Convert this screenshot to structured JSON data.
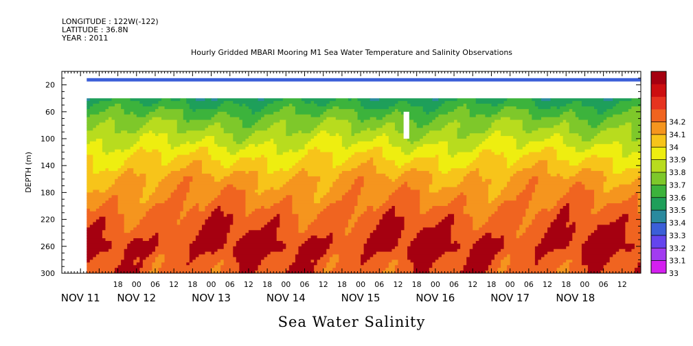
{
  "header": {
    "longitude": "LONGITUDE : 122W(-122)",
    "latitude": "LATITUDE : 36.8N",
    "year": "YEAR : 2011",
    "title": "Hourly Gridded MBARI Mooring M1 Sea Water Temperature and Salinity Observations"
  },
  "footer": {
    "variable": "Sea Water Salinity"
  },
  "chart_data": {
    "type": "heatmap",
    "title": "Hourly Gridded MBARI Mooring M1 Sea Water Temperature and Salinity Observations",
    "subtitle": "Sea Water Salinity",
    "ylabel": "DEPTH (m)",
    "xlabel": "",
    "ylim": [
      300,
      0
    ],
    "xlim_hours": [
      0,
      186
    ],
    "y_ticks": [
      20,
      60,
      100,
      140,
      180,
      220,
      260,
      300
    ],
    "x_hour_ticks": [
      {
        "hour": 18,
        "label": "18"
      },
      {
        "hour": 24,
        "label": "00"
      },
      {
        "hour": 30,
        "label": "06"
      },
      {
        "hour": 36,
        "label": "12"
      },
      {
        "hour": 42,
        "label": "18"
      },
      {
        "hour": 48,
        "label": "00"
      },
      {
        "hour": 54,
        "label": "06"
      },
      {
        "hour": 60,
        "label": "12"
      },
      {
        "hour": 66,
        "label": "18"
      },
      {
        "hour": 72,
        "label": "00"
      },
      {
        "hour": 78,
        "label": "06"
      },
      {
        "hour": 84,
        "label": "12"
      },
      {
        "hour": 90,
        "label": "18"
      },
      {
        "hour": 96,
        "label": "00"
      },
      {
        "hour": 102,
        "label": "06"
      },
      {
        "hour": 108,
        "label": "12"
      },
      {
        "hour": 114,
        "label": "18"
      },
      {
        "hour": 120,
        "label": "00"
      },
      {
        "hour": 126,
        "label": "06"
      },
      {
        "hour": 132,
        "label": "12"
      },
      {
        "hour": 138,
        "label": "18"
      },
      {
        "hour": 144,
        "label": "00"
      },
      {
        "hour": 150,
        "label": "06"
      },
      {
        "hour": 156,
        "label": "12"
      },
      {
        "hour": 162,
        "label": "18"
      },
      {
        "hour": 168,
        "label": "00"
      },
      {
        "hour": 174,
        "label": "06"
      },
      {
        "hour": 180,
        "label": "12"
      }
    ],
    "day_labels": [
      {
        "hour": 6,
        "label": "NOV 11"
      },
      {
        "hour": 24,
        "label": "NOV 12"
      },
      {
        "hour": 48,
        "label": "NOV 13"
      },
      {
        "hour": 72,
        "label": "NOV 14"
      },
      {
        "hour": 96,
        "label": "NOV 15"
      },
      {
        "hour": 120,
        "label": "NOV 16"
      },
      {
        "hour": 144,
        "label": "NOV 17"
      },
      {
        "hour": 165,
        "label": "NOV 18"
      }
    ],
    "data_start_hour": 8,
    "data_end_hour": 186,
    "surface_depths": [
      10,
      15
    ],
    "surface_value": 33.25,
    "gap_depths": [
      15,
      40
    ],
    "gap_columns": [
      {
        "hour_start": 109.8,
        "hour_end": 111.6,
        "depth_start": 60,
        "depth_end": 100
      }
    ],
    "depth_levels": [
      40,
      60,
      80,
      100,
      120,
      140,
      160,
      180,
      200,
      220,
      240,
      260,
      280,
      300
    ],
    "profile_values": [
      33.45,
      33.58,
      33.68,
      33.76,
      33.86,
      33.94,
      34.02,
      34.06,
      34.11,
      34.15,
      34.18,
      34.22,
      34.17,
      34.16
    ],
    "colorbar": {
      "levels": [
        33,
        33.1,
        33.2,
        33.3,
        33.4,
        33.5,
        33.6,
        33.7,
        33.8,
        33.9,
        34,
        34.1,
        34.2
      ],
      "labels": [
        "33",
        "33.1",
        "33.2",
        "33.3",
        "33.4",
        "33.5",
        "33.6",
        "33.7",
        "33.8",
        "33.9",
        "34",
        "34.1",
        "34.2"
      ],
      "colors": [
        "#d41ff0",
        "#a23cf0",
        "#6445ee",
        "#3b5fd8",
        "#2a8a9e",
        "#1e9f5a",
        "#3cb33c",
        "#7ec82a",
        "#b8dc1e",
        "#eeee10",
        "#f7c41a",
        "#f5951e",
        "#f06420",
        "#e63420",
        "#cc0e10",
        "#a50010"
      ]
    }
  }
}
